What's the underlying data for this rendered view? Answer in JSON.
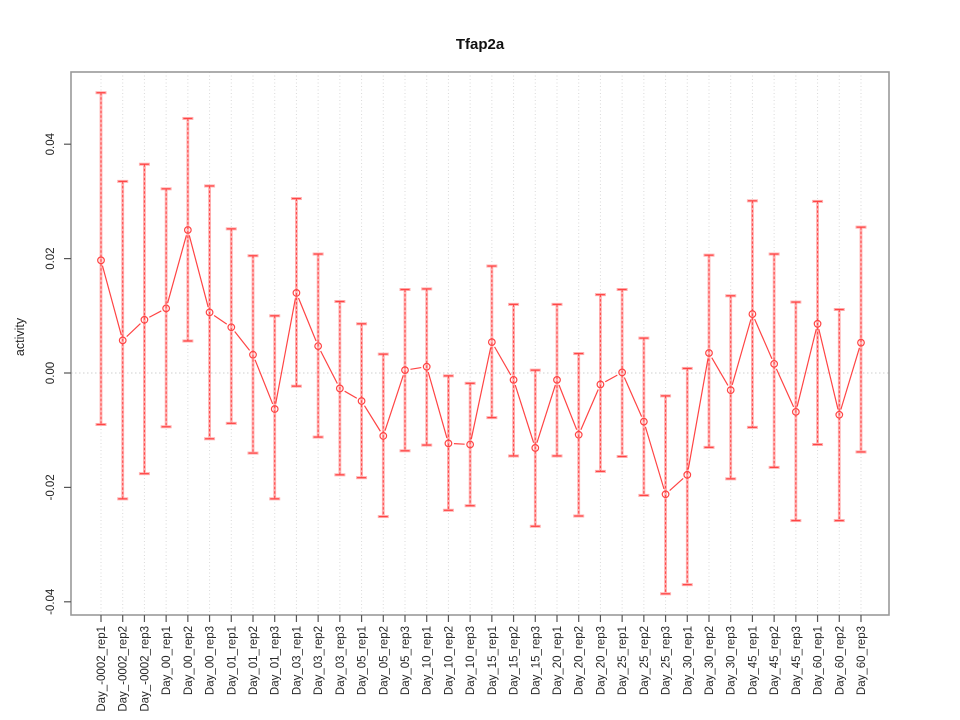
{
  "chart_data": {
    "type": "scatter",
    "title": "Tfap2a",
    "xlabel": "",
    "ylabel": "activity",
    "ylim": [
      -0.0423,
      0.0533
    ],
    "yticks": [
      -0.04,
      -0.02,
      0.0,
      0.02,
      0.04
    ],
    "grid": "vertical dotted gridline at every category; horizontal dotted line at y=0 only",
    "legend": "none",
    "marker": "open-circle",
    "line_style": "segments between consecutive points with gaps at markers (R type='b')",
    "error_bars": "pale thick band with caps behind red dashed bar with caps, per point",
    "colors": {
      "series": "#ff4444",
      "error_band": "#ffb0b0",
      "gridline": "#d9d9d9",
      "zero_line": "#cfcfcf",
      "plot_border": "#999999",
      "tick": "#555555",
      "tick_label": "#262626",
      "title": "#111111"
    },
    "categories": [
      "Day_-0002_rep1",
      "Day_-0002_rep2",
      "Day_-0002_rep3",
      "Day_00_rep1",
      "Day_00_rep2",
      "Day_00_rep3",
      "Day_01_rep1",
      "Day_01_rep2",
      "Day_01_rep3",
      "Day_03_rep1",
      "Day_03_rep2",
      "Day_03_rep3",
      "Day_05_rep1",
      "Day_05_rep2",
      "Day_05_rep3",
      "Day_10_rep1",
      "Day_10_rep2",
      "Day_10_rep3",
      "Day_15_rep1",
      "Day_15_rep2",
      "Day_15_rep3",
      "Day_20_rep1",
      "Day_20_rep2",
      "Day_20_rep3",
      "Day_25_rep1",
      "Day_25_rep2",
      "Day_25_rep3",
      "Day_30_rep1",
      "Day_30_rep2",
      "Day_30_rep3",
      "Day_45_rep1",
      "Day_45_rep2",
      "Day_45_rep3",
      "Day_60_rep1",
      "Day_60_rep2",
      "Day_60_rep3"
    ],
    "series": [
      {
        "name": "activity",
        "values": [
          0.0197,
          0.0057,
          0.0093,
          0.0113,
          0.025,
          0.0106,
          0.008,
          0.0032,
          -0.0063,
          0.014,
          0.0047,
          -0.0027,
          -0.0049,
          -0.011,
          0.0005,
          0.0011,
          -0.0123,
          -0.0125,
          0.0054,
          -0.0012,
          -0.0131,
          -0.0012,
          -0.0108,
          -0.002,
          0.0001,
          -0.0085,
          -0.0212,
          -0.0178,
          0.0035,
          -0.003,
          0.0103,
          0.0016,
          -0.0068,
          0.0086,
          -0.0073,
          0.0053
        ],
        "err_hi": [
          0.049,
          0.0335,
          0.0365,
          0.0322,
          0.0445,
          0.0327,
          0.0252,
          0.0205,
          0.01,
          0.0305,
          0.0208,
          0.0125,
          0.0086,
          0.0033,
          0.0146,
          0.0147,
          -0.0005,
          -0.0018,
          0.0187,
          0.012,
          0.0005,
          0.012,
          0.0034,
          0.0137,
          0.0146,
          0.0061,
          -0.004,
          0.0008,
          0.0206,
          0.0135,
          0.0301,
          0.0208,
          0.0124,
          0.03,
          0.0111,
          0.0255
        ],
        "err_lo": [
          -0.009,
          -0.022,
          -0.0176,
          -0.0094,
          0.0056,
          -0.0115,
          -0.0088,
          -0.014,
          -0.022,
          -0.0023,
          -0.0112,
          -0.0178,
          -0.0183,
          -0.0251,
          -0.0136,
          -0.0126,
          -0.024,
          -0.0232,
          -0.0078,
          -0.0145,
          -0.0268,
          -0.0145,
          -0.025,
          -0.0172,
          -0.0146,
          -0.0214,
          -0.0386,
          -0.037,
          -0.013,
          -0.0185,
          -0.0095,
          -0.0165,
          -0.0258,
          -0.0125,
          -0.0258,
          -0.0138
        ]
      }
    ]
  }
}
